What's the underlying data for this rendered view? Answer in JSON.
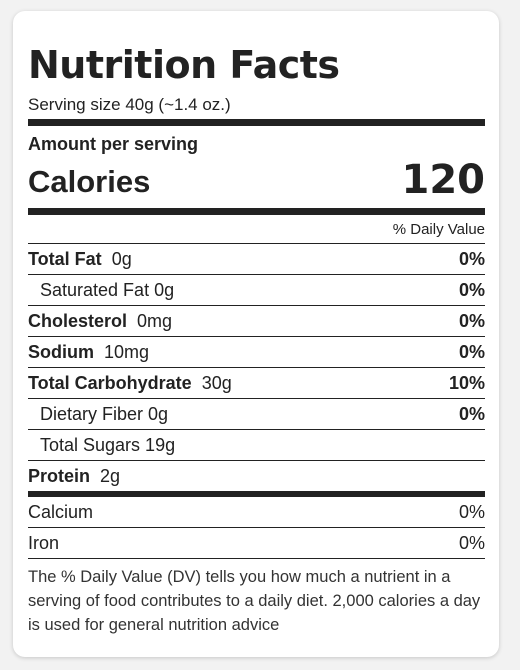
{
  "title": "Nutrition Facts",
  "serving_size": "Serving size 40g (~1.4 oz.)",
  "amount_per_serving": "Amount per serving",
  "calories": {
    "label": "Calories",
    "value": "120"
  },
  "daily_value_header": "% Daily Value",
  "nutrients": [
    {
      "name": "Total Fat",
      "amount": "0g",
      "dv": "0%"
    },
    {
      "name": "Saturated Fat 0g",
      "dv": "0%"
    },
    {
      "name": "Cholesterol",
      "amount": "0mg",
      "dv": "0%"
    },
    {
      "name": "Sodium",
      "amount": "10mg",
      "dv": "0%"
    },
    {
      "name": "Total Carbohydrate",
      "amount": "30g",
      "dv": "10%"
    },
    {
      "name": "Dietary Fiber 0g",
      "dv": "0%"
    },
    {
      "name": "Total Sugars 19g",
      "dv": ""
    },
    {
      "name": "Protein",
      "amount": "2g",
      "dv": ""
    }
  ],
  "minerals": [
    {
      "name": "Calcium",
      "dv": "0%"
    },
    {
      "name": "Iron",
      "dv": "0%"
    }
  ],
  "footnote": "The % Daily Value (DV) tells you how much a nutrient in a serving of food contributes to a daily diet. 2,000 calories a day is used for general nutrition advice"
}
